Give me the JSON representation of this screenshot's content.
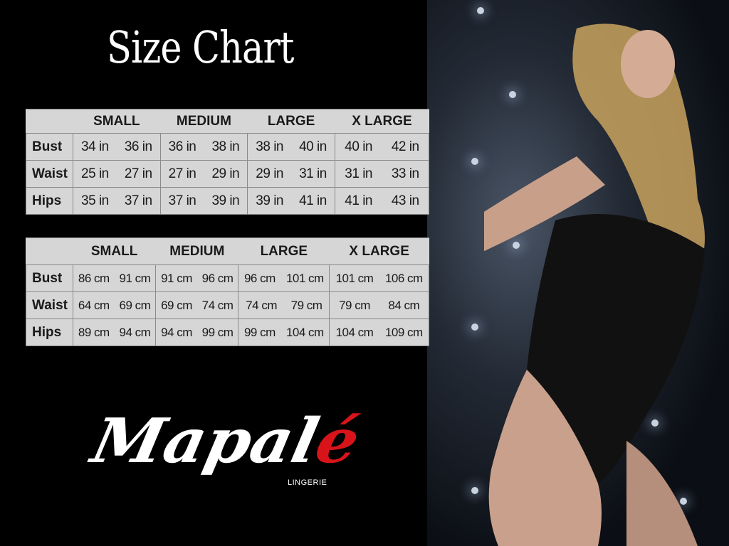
{
  "title": "Size Chart",
  "sizes": [
    "SMALL",
    "MEDIUM",
    "LARGE",
    "X LARGE"
  ],
  "inches_table": {
    "rows": [
      {
        "label": "Bust",
        "values": [
          "34 in",
          "36 in",
          "36 in",
          "38 in",
          "38 in",
          "40 in",
          "40 in",
          "42 in"
        ]
      },
      {
        "label": "Waist",
        "values": [
          "25 in",
          "27 in",
          "27 in",
          "29 in",
          "29 in",
          "31 in",
          "31 in",
          "33 in"
        ]
      },
      {
        "label": "Hips",
        "values": [
          "35 in",
          "37 in",
          "37 in",
          "39 in",
          "39 in",
          "41 in",
          "41 in",
          "43 in"
        ]
      }
    ]
  },
  "cm_table": {
    "rows": [
      {
        "label": "Bust",
        "values": [
          "86 cm",
          "91 cm",
          "91 cm",
          "96 cm",
          "96 cm",
          "101 cm",
          "101 cm",
          "106 cm"
        ]
      },
      {
        "label": "Waist",
        "values": [
          "64 cm",
          "69 cm",
          "69 cm",
          "74 cm",
          "74 cm",
          "79 cm",
          "79 cm",
          "84 cm"
        ]
      },
      {
        "label": "Hips",
        "values": [
          "89 cm",
          "94 cm",
          "94 cm",
          "99 cm",
          "99 cm",
          "104 cm",
          "104 cm",
          "109 cm"
        ]
      }
    ]
  },
  "brand": {
    "name": "Mapal",
    "accent_letter": "é",
    "subtitle": "LINGERIE",
    "accent_color": "#d8141a"
  }
}
